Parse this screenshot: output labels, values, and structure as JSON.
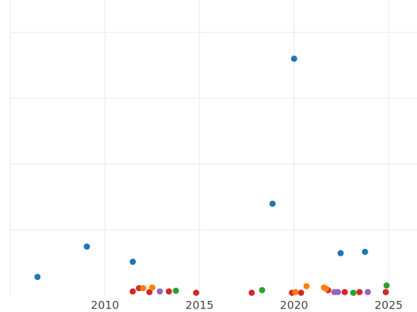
{
  "chart_data": {
    "type": "scatter",
    "xlim": [
      2005,
      2026.5
    ],
    "xticks": [
      2010,
      2015,
      2020,
      2025
    ],
    "ylim": [
      0,
      4.49
    ],
    "ygrid": [
      1,
      2,
      3,
      4
    ],
    "xgrid": [
      2005,
      2010,
      2015,
      2020,
      2025
    ],
    "grid": true,
    "series": [
      {
        "color": "#1f77b4",
        "x": [
          2006.43,
          2009.04,
          2011.47,
          2020.0,
          2018.86,
          2022.46,
          2023.75
        ],
        "values": [
          0.29,
          0.75,
          0.52,
          3.6,
          1.4,
          0.65,
          0.67
        ]
      },
      {
        "color": "#d62728",
        "x": [
          2011.47,
          2011.8,
          2012.35,
          2013.38,
          2014.82,
          2017.76,
          2019.89,
          2020.37,
          2021.8,
          2022.68,
          2023.46,
          2024.85
        ],
        "values": [
          0.07,
          0.12,
          0.06,
          0.07,
          0.05,
          0.05,
          0.05,
          0.05,
          0.09,
          0.06,
          0.06,
          0.06
        ]
      },
      {
        "color": "#ff7f0e",
        "x": [
          2012.02,
          2012.5,
          2020.07,
          2020.66,
          2021.58,
          2021.69
        ],
        "values": [
          0.12,
          0.13,
          0.06,
          0.15,
          0.13,
          0.11
        ]
      },
      {
        "color": "#2ca02c",
        "x": [
          2013.75,
          2018.31,
          2023.13,
          2024.89
        ],
        "values": [
          0.08,
          0.09,
          0.05,
          0.16
        ]
      },
      {
        "color": "#9467bd",
        "x": [
          2012.9,
          2022.13,
          2022.32,
          2023.9
        ],
        "values": [
          0.07,
          0.06,
          0.06,
          0.06
        ]
      }
    ]
  }
}
